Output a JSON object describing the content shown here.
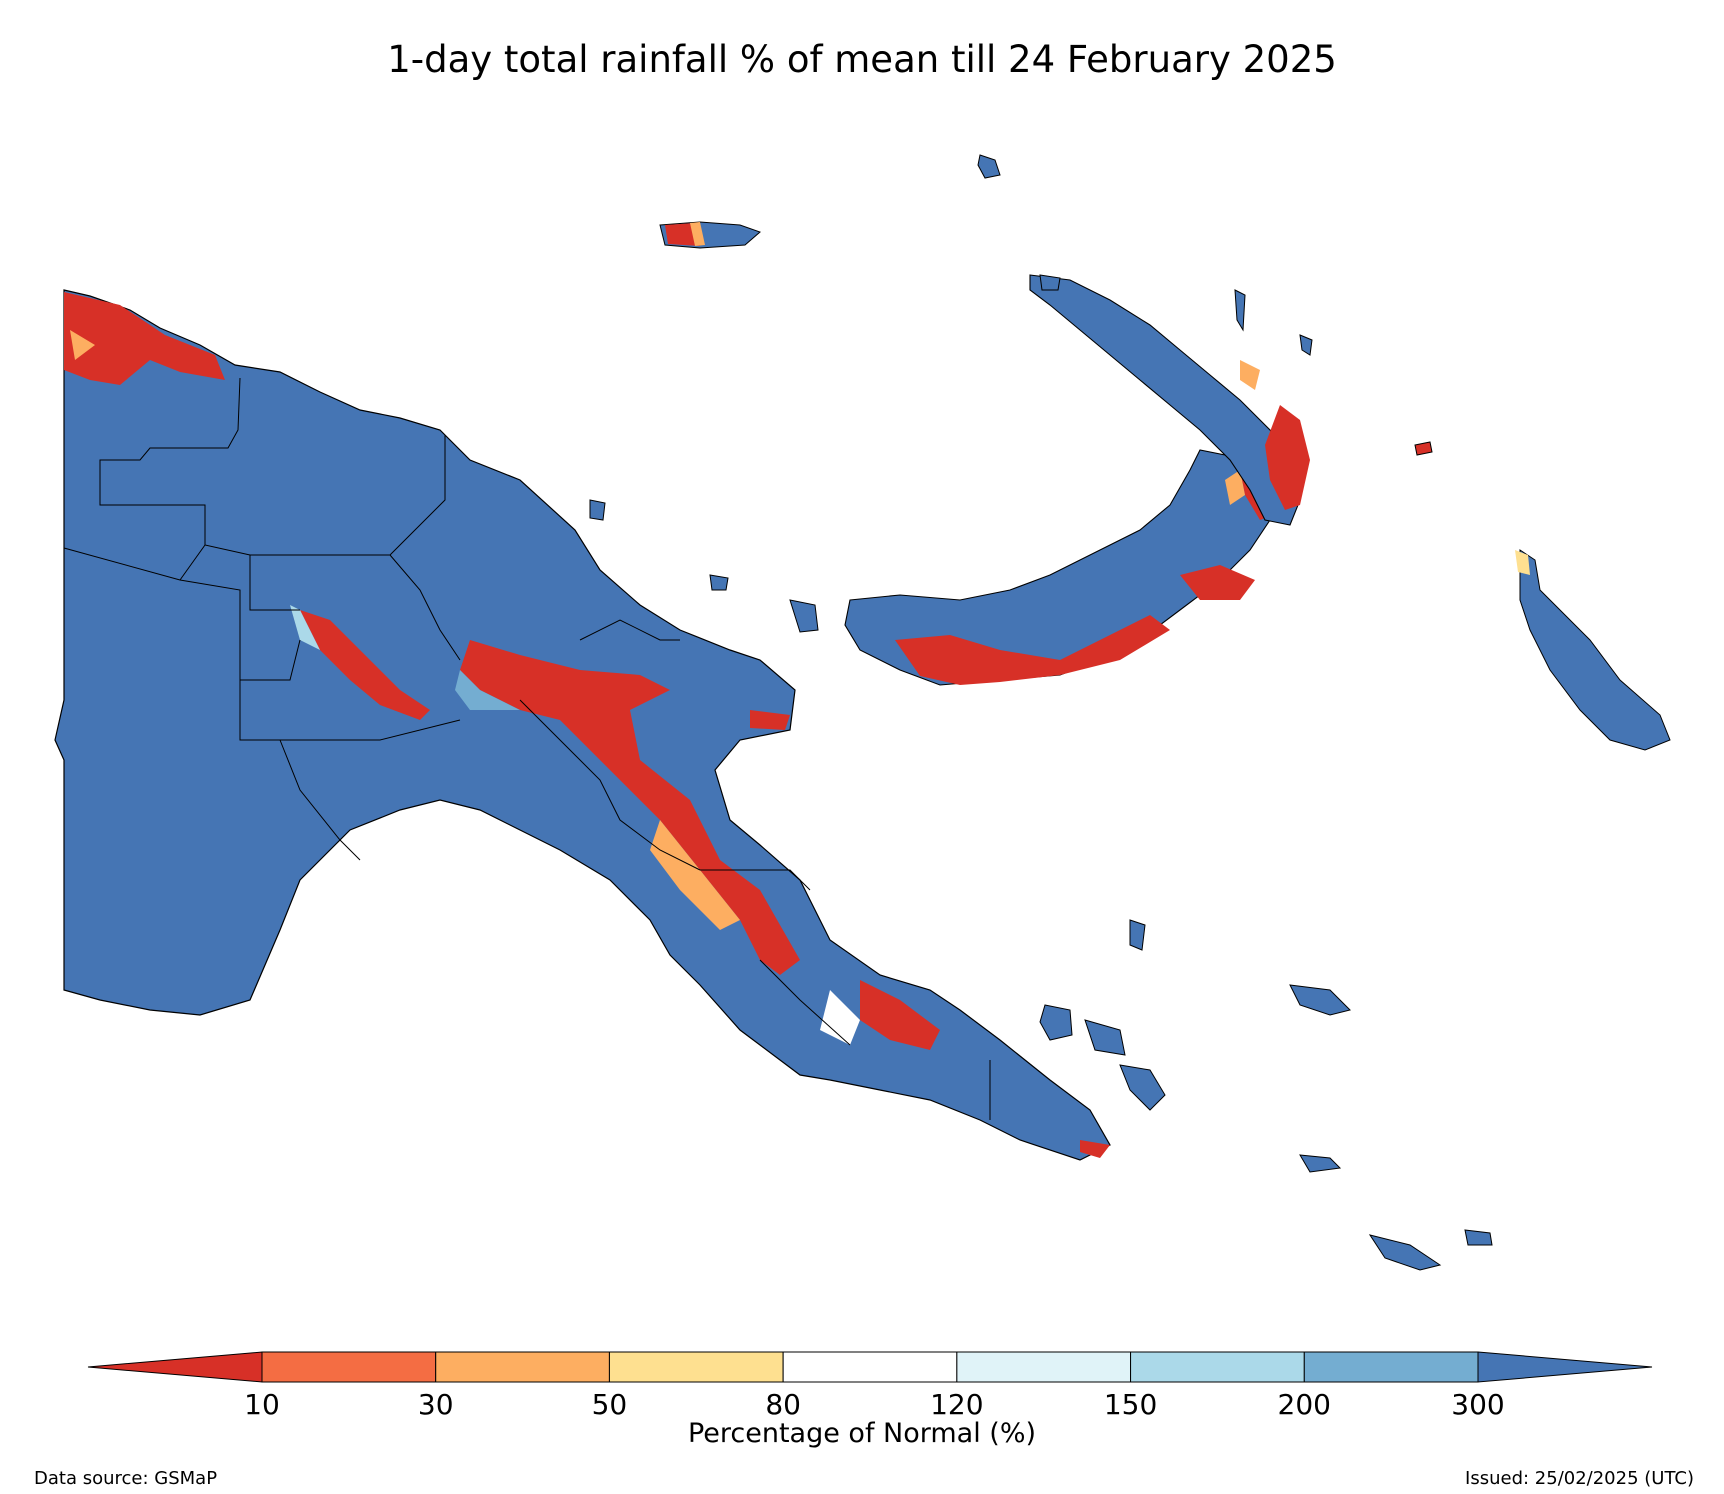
{
  "title": "1-day total rainfall % of mean till 24 February 2025",
  "colorbar": {
    "label": "Percentage of Normal (%)",
    "ticks": [
      "10",
      "30",
      "50",
      "80",
      "120",
      "150",
      "200",
      "300"
    ],
    "colors": [
      "#d73027",
      "#f46d43",
      "#fdae61",
      "#fee090",
      "#ffffff",
      "#e0f3f8",
      "#abd9e9",
      "#74add1",
      "#4575b4"
    ],
    "extend": "both"
  },
  "map": {
    "region": "Papua New Guinea",
    "fill_colors": {
      "very_wet": "#4575b4",
      "wet": "#74add1",
      "dry": "#d73027",
      "moderately_dry": "#fdae61",
      "near_normal": "#ffffff"
    }
  },
  "footer": {
    "source": "Data source: GSMaP",
    "issued": "Issued: 25/02/2025 (UTC)"
  }
}
